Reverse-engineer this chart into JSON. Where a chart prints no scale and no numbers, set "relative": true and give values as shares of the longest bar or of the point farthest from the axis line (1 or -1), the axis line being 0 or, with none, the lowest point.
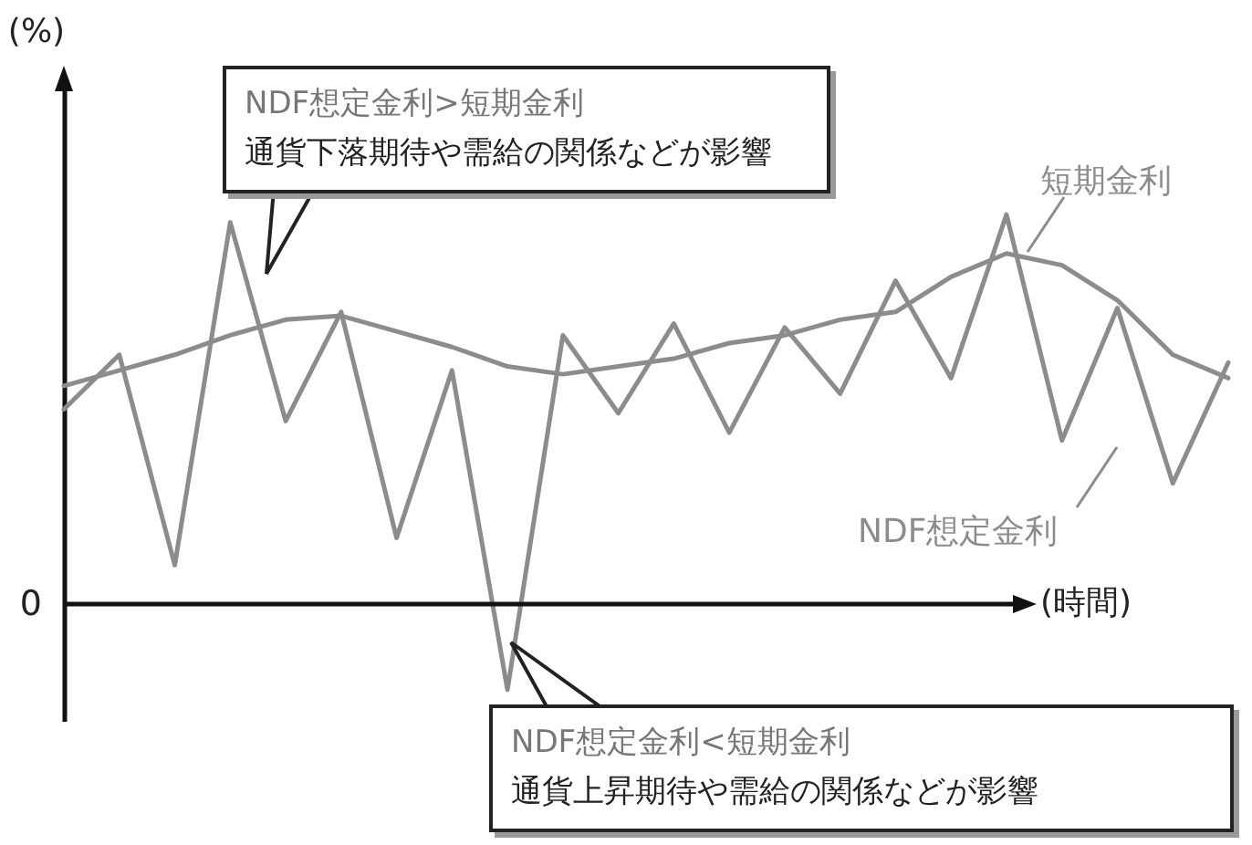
{
  "chart_data": {
    "type": "line",
    "relative": true,
    "xlabel": "(時間)",
    "ylabel": "(%)",
    "categories": [
      null,
      null,
      null,
      null,
      null,
      null,
      null,
      null,
      null,
      null,
      null,
      null,
      null,
      null,
      null,
      null,
      null,
      null,
      null,
      null,
      null,
      null
    ],
    "series": [
      {
        "name": "短期金利",
        "color": "#8c8c8c",
        "values": [
          0.56,
          0.6,
          0.64,
          0.69,
          0.73,
          0.74,
          0.7,
          0.66,
          0.61,
          0.59,
          0.61,
          0.63,
          0.67,
          0.69,
          0.73,
          0.75,
          0.84,
          0.9,
          0.87,
          0.78,
          0.64,
          0.58
        ]
      },
      {
        "name": "NDF想定金利",
        "color": "#8c8c8c",
        "values": [
          0.5,
          0.64,
          0.1,
          0.98,
          0.47,
          0.75,
          0.17,
          0.6,
          -0.22,
          0.69,
          0.49,
          0.72,
          0.44,
          0.71,
          0.54,
          0.83,
          0.58,
          1,
          0.42,
          0.76,
          0.31,
          0.62
        ]
      }
    ],
    "annotations": [
      "0",
      "NDF想定金利>短期金利",
      "通貨下落期待や需給の関係などが影響",
      "NDF想定金利<短期金利",
      "通貨上昇期待や需給の関係などが影響"
    ]
  }
}
